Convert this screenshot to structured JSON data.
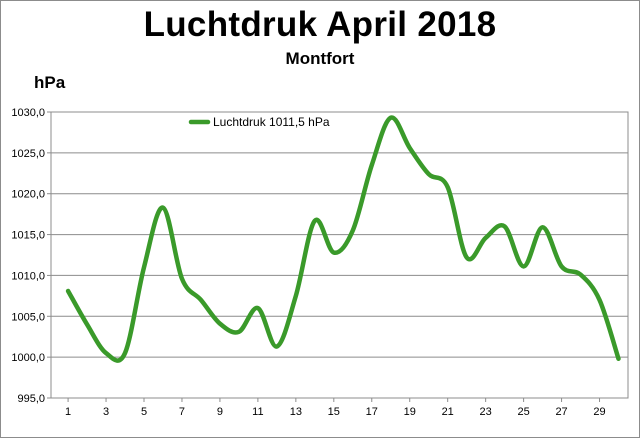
{
  "chart_data": {
    "type": "line",
    "title": "Luchtdruk April 2018",
    "subtitle": "Montfort",
    "ylabel": "hPa",
    "xlabel": "",
    "ylim": [
      995,
      1030
    ],
    "xlim": [
      1,
      30
    ],
    "yticks": [
      995,
      1000,
      1005,
      1010,
      1015,
      1020,
      1025,
      1030
    ],
    "ytick_labels": [
      "995,0",
      "1000,0",
      "1005,0",
      "1010,0",
      "1015,0",
      "1020,0",
      "1025,0",
      "1030,0"
    ],
    "xticks": [
      1,
      3,
      5,
      7,
      9,
      11,
      13,
      15,
      17,
      19,
      21,
      23,
      25,
      27,
      29
    ],
    "xtick_labels": [
      "1",
      "3",
      "5",
      "7",
      "9",
      "11",
      "13",
      "15",
      "17",
      "19",
      "21",
      "23",
      "25",
      "27",
      "29"
    ],
    "grid": true,
    "legend_position": "top-left",
    "series": [
      {
        "name": "Luchtdruk 1011,5 hPa",
        "color": "#3a9a2a",
        "x": [
          1,
          2,
          3,
          4,
          5,
          6,
          7,
          8,
          9,
          10,
          11,
          12,
          13,
          14,
          15,
          16,
          17,
          18,
          19,
          20,
          21,
          22,
          23,
          24,
          25,
          26,
          27,
          28,
          29,
          30
        ],
        "values": [
          1008.1,
          1004.0,
          1000.5,
          1000.5,
          1011.0,
          1018.3,
          1009.6,
          1007.0,
          1004.1,
          1003.1,
          1006.0,
          1001.3,
          1007.5,
          1016.7,
          1012.8,
          1015.5,
          1023.5,
          1029.3,
          1025.6,
          1022.4,
          1020.8,
          1012.2,
          1014.6,
          1016.0,
          1011.1,
          1015.9,
          1011.1,
          1010.1,
          1007.0,
          999.8
        ]
      }
    ]
  }
}
